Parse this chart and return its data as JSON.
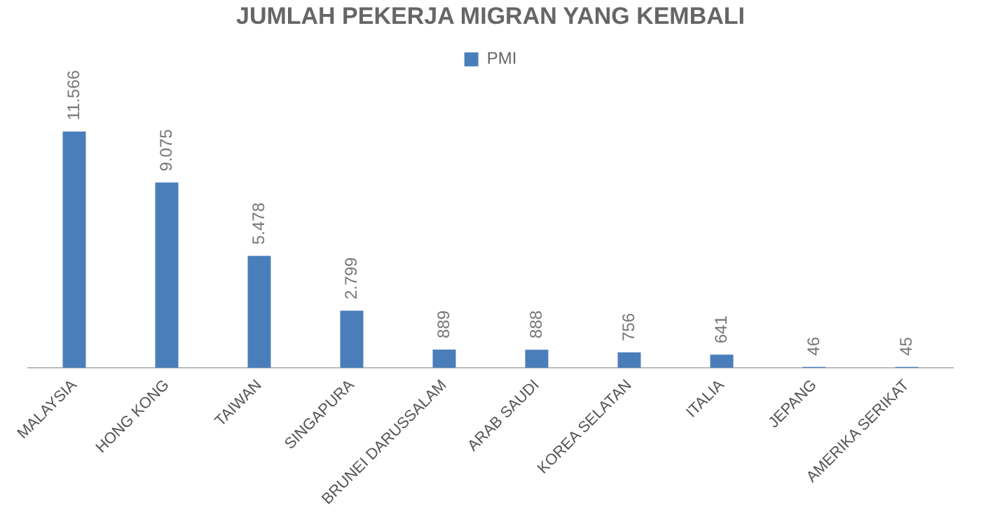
{
  "chart_data": {
    "type": "bar",
    "title": "JUMLAH PEKERJA MIGRAN YANG KEMBALI",
    "categories": [
      "MALAYSIA",
      "HONG KONG",
      "TAIWAN",
      "SINGAPURA",
      "BRUNEI DARUSSALAM",
      "ARAB SAUDI",
      "KOREA SELATAN",
      "ITALIA",
      "JEPANG",
      "AMERIKA SERIKAT"
    ],
    "series": [
      {
        "name": "PMI",
        "color": "#4a7ebb",
        "values": [
          11566,
          9075,
          5478,
          2799,
          889,
          888,
          756,
          641,
          46,
          45
        ],
        "value_labels": [
          "11.566",
          "9.075",
          "5.478",
          "2.799",
          "889",
          "888",
          "756",
          "641",
          "46",
          "45"
        ]
      }
    ],
    "legend": "top",
    "grid": false
  }
}
